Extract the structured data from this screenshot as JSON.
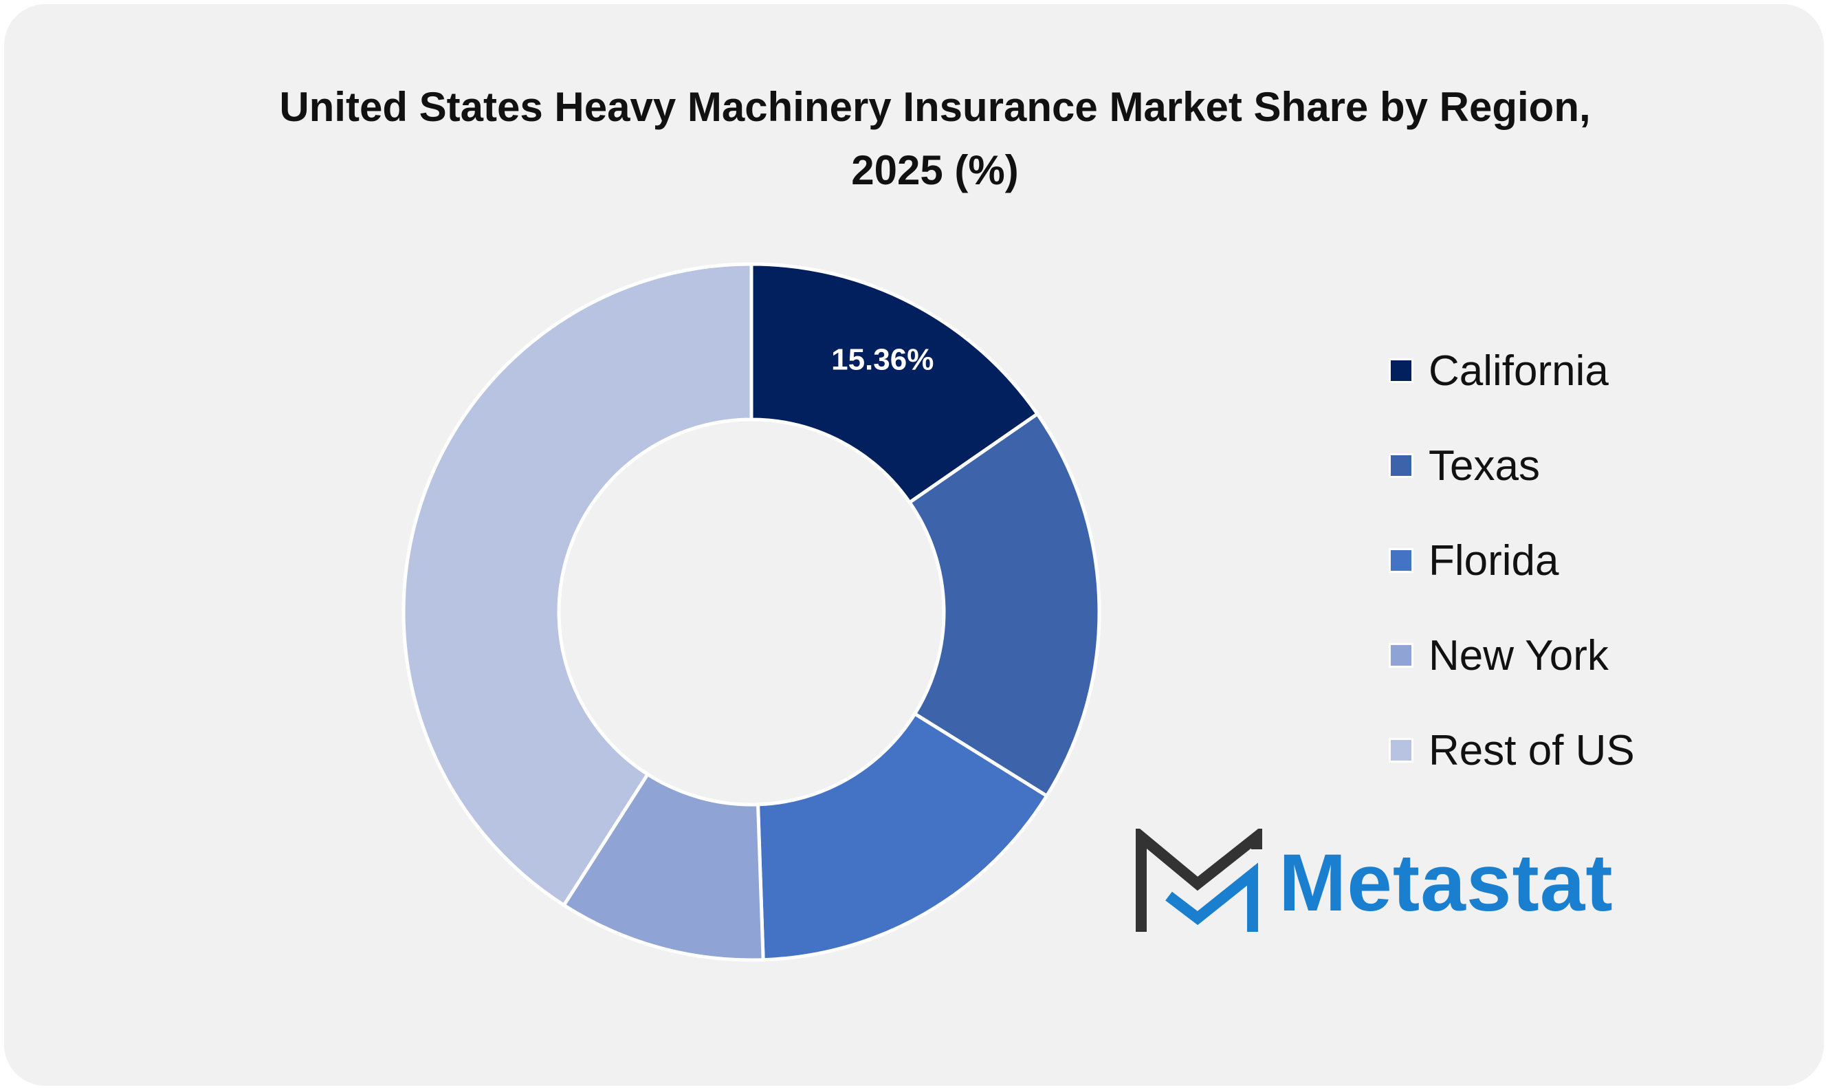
{
  "chart_data": {
    "type": "pie",
    "title": "United States Heavy Machinery Insurance Market Share by Region, 2025 (%)",
    "donut": true,
    "categories": [
      "California",
      "Texas",
      "Florida",
      "New York",
      "Rest of US"
    ],
    "values": [
      15.36,
      18.5,
      15.6,
      9.6,
      40.94
    ],
    "colors": [
      "#021f5e",
      "#3d63aa",
      "#4472c4",
      "#8fa3d4",
      "#b8c3e2"
    ],
    "data_labels": [
      "15.36%",
      "",
      "",
      "",
      ""
    ],
    "legend_position": "right"
  },
  "brand": {
    "name": "Metastat",
    "color": "#1b7fd0",
    "mark_color": "#333333"
  }
}
